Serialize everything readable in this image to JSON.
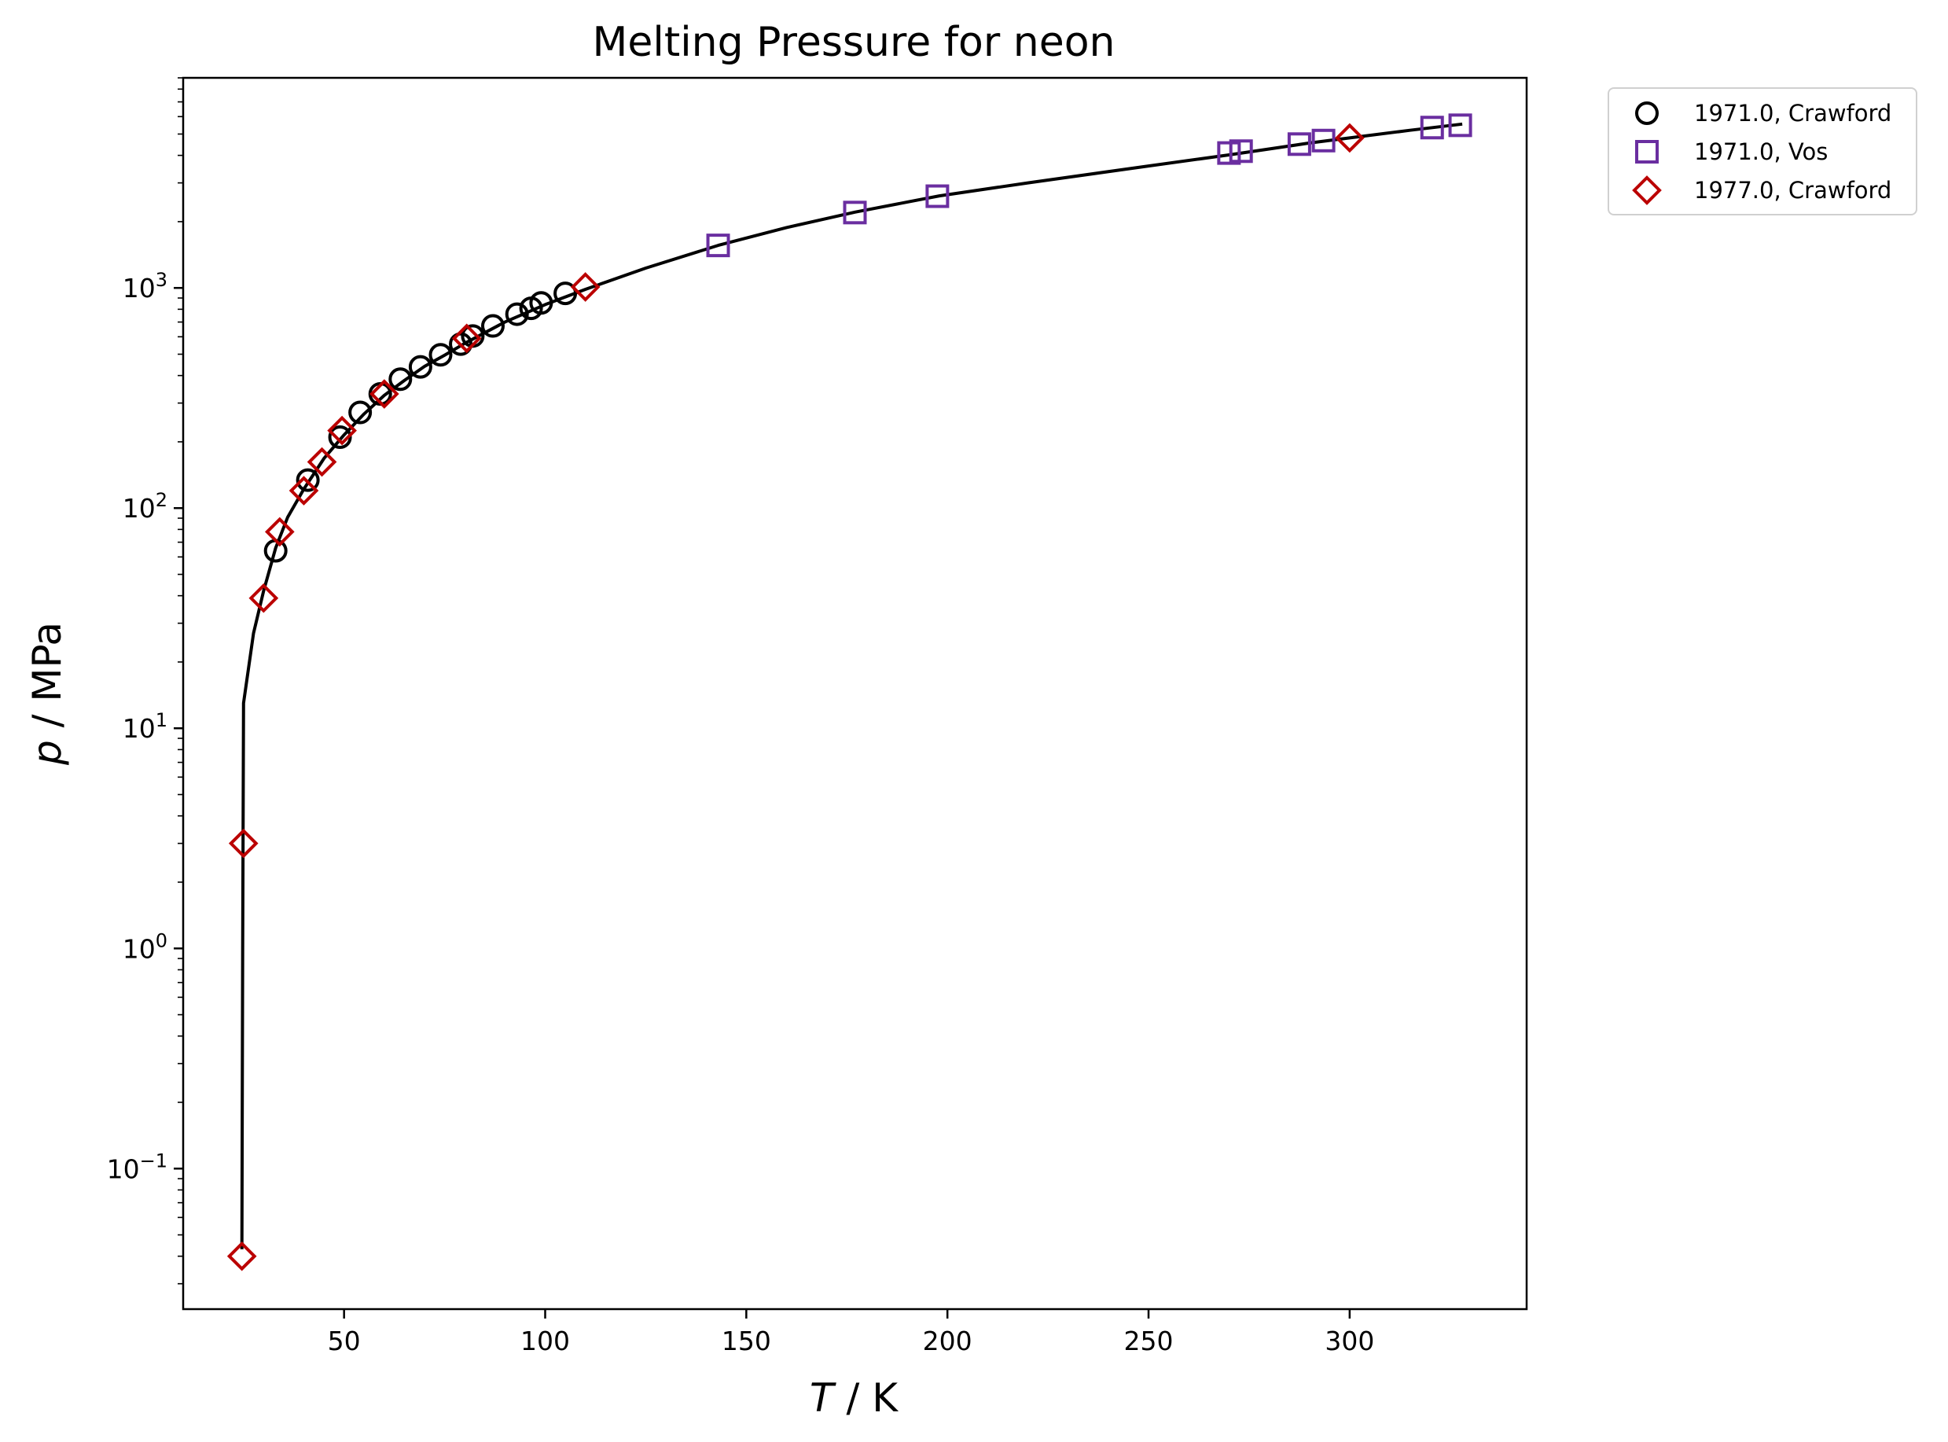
{
  "chart_data": {
    "type": "scatter",
    "title": "Melting Pressure for neon",
    "xlabel": {
      "symbol": "T",
      "unit": " / K"
    },
    "ylabel": {
      "symbol": "p",
      "unit": " / MPa"
    },
    "xlim": [
      10,
      344
    ],
    "ylim": [
      0.023,
      9000
    ],
    "yscale": "log",
    "xticks": [
      50,
      100,
      150,
      200,
      250,
      300
    ],
    "xtick_labels": [
      "50",
      "100",
      "150",
      "200",
      "250",
      "300"
    ],
    "yticks": [
      {
        "value": 0.1,
        "base": "10",
        "exp": "−1"
      },
      {
        "value": 1,
        "base": "10",
        "exp": "0"
      },
      {
        "value": 10,
        "base": "10",
        "exp": "1"
      },
      {
        "value": 100,
        "base": "10",
        "exp": "2"
      },
      {
        "value": 1000,
        "base": "10",
        "exp": "3"
      }
    ],
    "grid": false,
    "legend_position": "outside-top-right",
    "fit_curve": {
      "color": "#000000",
      "points": [
        [
          24.6,
          0.043
        ],
        [
          24.8,
          1.0
        ],
        [
          25.0,
          13.0
        ],
        [
          27.5,
          27
        ],
        [
          30.0,
          42
        ],
        [
          33.0,
          66
        ],
        [
          36.0,
          91
        ],
        [
          40.0,
          122
        ],
        [
          45.0,
          168
        ],
        [
          50.0,
          215
        ],
        [
          55.0,
          268
        ],
        [
          60.0,
          325
        ],
        [
          65.0,
          380
        ],
        [
          70.0,
          440
        ],
        [
          75.0,
          495
        ],
        [
          80.0,
          560
        ],
        [
          90.0,
          700
        ],
        [
          100.0,
          840
        ],
        [
          110.0,
          985
        ],
        [
          125.0,
          1230
        ],
        [
          143.0,
          1560
        ],
        [
          160.0,
          1880
        ],
        [
          177.0,
          2210
        ],
        [
          198.0,
          2620
        ],
        [
          220.0,
          3000
        ],
        [
          250.0,
          3580
        ],
        [
          270.0,
          4020
        ],
        [
          290.0,
          4550
        ],
        [
          300.0,
          4800
        ],
        [
          315.0,
          5200
        ],
        [
          328.0,
          5550
        ]
      ]
    },
    "series": [
      {
        "name": "1971.0, Crawford",
        "marker": "circle",
        "color": "#000000",
        "points": [
          [
            33.0,
            64
          ],
          [
            41.0,
            134
          ],
          [
            49.0,
            210
          ],
          [
            54.0,
            272
          ],
          [
            59.0,
            330
          ],
          [
            64.0,
            385
          ],
          [
            69.0,
            438
          ],
          [
            74.0,
            497
          ],
          [
            79.0,
            556
          ],
          [
            82.0,
            605
          ],
          [
            87.0,
            672
          ],
          [
            93.0,
            760
          ],
          [
            96.5,
            808
          ],
          [
            99.0,
            855
          ],
          [
            105.0,
            945
          ]
        ]
      },
      {
        "name": "1971.0, Vos",
        "marker": "square",
        "color": "#6a2ea0",
        "points": [
          [
            143.0,
            1560
          ],
          [
            177.0,
            2200
          ],
          [
            197.5,
            2610
          ],
          [
            270.0,
            4100
          ],
          [
            273.0,
            4180
          ],
          [
            287.5,
            4500
          ],
          [
            293.5,
            4670
          ],
          [
            320.5,
            5350
          ],
          [
            327.5,
            5480
          ]
        ]
      },
      {
        "name": "1977.0, Crawford",
        "marker": "diamond",
        "color": "#bb0000",
        "points": [
          [
            24.6,
            0.04
          ],
          [
            25.0,
            3.0
          ],
          [
            30.0,
            39
          ],
          [
            34.0,
            78
          ],
          [
            40.0,
            120
          ],
          [
            44.5,
            162
          ],
          [
            49.5,
            225
          ],
          [
            60.0,
            330
          ],
          [
            80.5,
            590
          ],
          [
            110.0,
            1010
          ],
          [
            300.0,
            4800
          ]
        ]
      }
    ]
  }
}
